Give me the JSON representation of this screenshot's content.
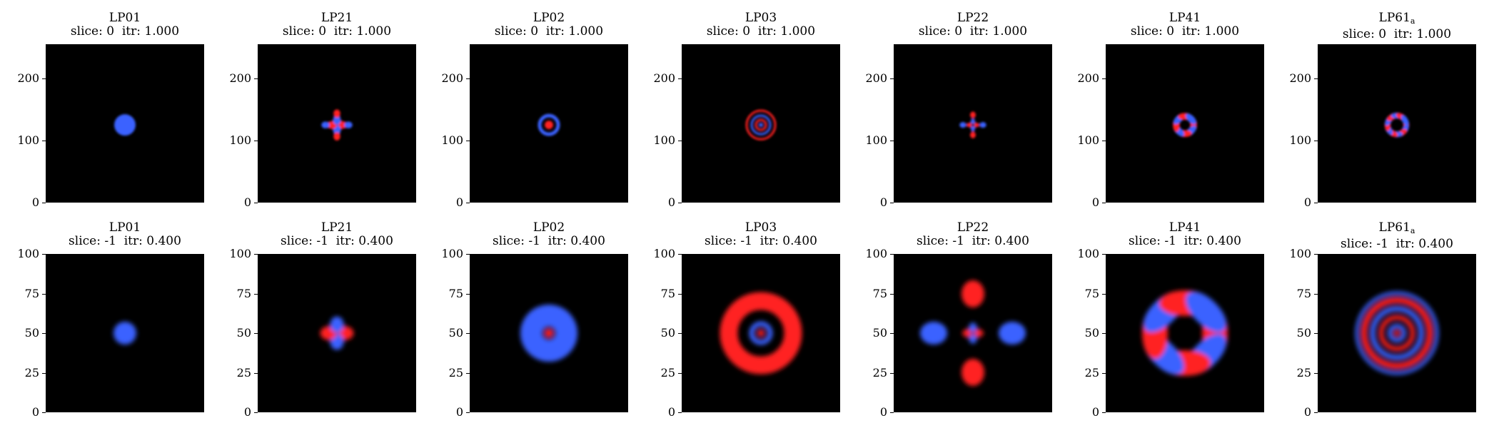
{
  "chart_data": {
    "type": "heatmap",
    "colormap": {
      "negative": "#3a62ff",
      "zero": "#000000",
      "positive": "#ff2020"
    },
    "rows": [
      {
        "slice_label": "slice: 0",
        "itr_label": "itr: 1.000",
        "slice": 0,
        "itr": 1.0,
        "yticks": [
          "0",
          "100",
          "200"
        ],
        "ylim": [
          0,
          255
        ]
      },
      {
        "slice_label": "slice: -1",
        "itr_label": "itr: 0.400",
        "slice": -1,
        "itr": 0.4,
        "yticks": [
          "0",
          "25",
          "50",
          "75",
          "100"
        ],
        "ylim": [
          0,
          100
        ]
      }
    ],
    "modes": [
      {
        "name": "LP01",
        "sub": "",
        "l": 0,
        "m": 1
      },
      {
        "name": "LP21",
        "sub": "",
        "l": 2,
        "m": 1
      },
      {
        "name": "LP02",
        "sub": "",
        "l": 0,
        "m": 2
      },
      {
        "name": "LP03",
        "sub": "",
        "l": 0,
        "m": 3
      },
      {
        "name": "LP22",
        "sub": "",
        "l": 2,
        "m": 2
      },
      {
        "name": "LP41",
        "sub": "",
        "l": 4,
        "m": 1
      },
      {
        "name": "LP61",
        "sub": "a",
        "l": 6,
        "m": 1
      }
    ]
  }
}
